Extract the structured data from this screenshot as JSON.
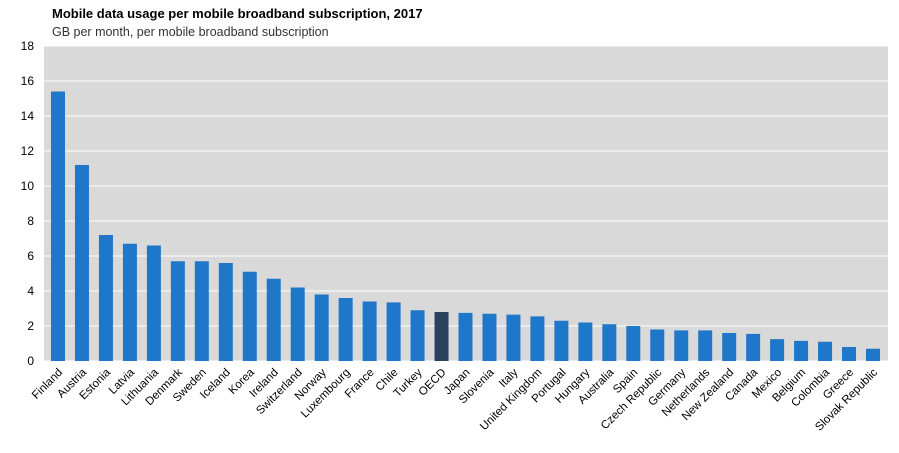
{
  "chart_data": {
    "type": "bar",
    "title": "Mobile data usage per mobile broadband subscription, 2017",
    "subtitle": "GB per month, per mobile broadband subscription",
    "xlabel": "",
    "ylabel": "",
    "ylim": [
      0,
      18
    ],
    "yticks": [
      0,
      2,
      4,
      6,
      8,
      10,
      12,
      14,
      16,
      18
    ],
    "grid": true,
    "categories": [
      "Finland",
      "Austria",
      "Estonia",
      "Latvia",
      "Lithuania",
      "Denmark",
      "Sweden",
      "Iceland",
      "Korea",
      "Ireland",
      "Switzerland",
      "Norway",
      "Luxembourg",
      "France",
      "Chile",
      "Turkey",
      "OECD",
      "Japan",
      "Slovenia",
      "Italy",
      "United Kingdom",
      "Portugal",
      "Hungary",
      "Australia",
      "Spain",
      "Czech Republic",
      "Germany",
      "Netherlands",
      "New Zealand",
      "Canada",
      "Mexico",
      "Belgium",
      "Colombia",
      "Greece",
      "Slovak Republic"
    ],
    "values": [
      15.4,
      11.2,
      7.2,
      6.7,
      6.6,
      5.7,
      5.7,
      5.6,
      5.1,
      4.7,
      4.2,
      3.8,
      3.6,
      3.4,
      3.35,
      2.9,
      2.8,
      2.75,
      2.7,
      2.65,
      2.55,
      2.3,
      2.2,
      2.1,
      2.0,
      1.8,
      1.75,
      1.75,
      1.6,
      1.55,
      1.25,
      1.15,
      1.1,
      0.8,
      0.7
    ],
    "highlight_category": "OECD",
    "colors": {
      "bar": "#1f77c9",
      "highlight": "#2b3f5e",
      "plot_bg": "#d9d9d9",
      "grid": "#ffffff"
    }
  }
}
